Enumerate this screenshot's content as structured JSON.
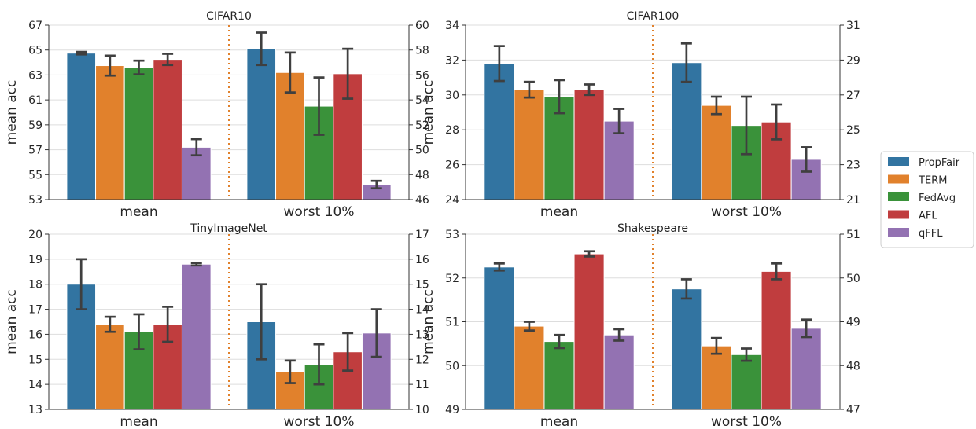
{
  "legend": {
    "placement": "right",
    "entries": [
      {
        "label": "PropFair",
        "color": "#3274a1"
      },
      {
        "label": "TERM",
        "color": "#e1812c"
      },
      {
        "label": "FedAvg",
        "color": "#3a923a"
      },
      {
        "label": "AFL",
        "color": "#c03d3e"
      },
      {
        "label": "qFFL",
        "color": "#9372b2"
      }
    ]
  },
  "colors": {
    "grid": "#dddddd",
    "errorbar": "#3f3f3f",
    "divider": "#e1812c"
  },
  "chart_data": [
    {
      "type": "bar",
      "title": "CIFAR10",
      "ylabel": "mean acc",
      "grid": true,
      "groups": [
        "mean",
        "worst 10%"
      ],
      "series_names": [
        "PropFair",
        "TERM",
        "FedAvg",
        "AFL",
        "qFFL"
      ],
      "left_axis": {
        "ylim": [
          53,
          67
        ],
        "ticks": [
          "53",
          "55",
          "57",
          "59",
          "61",
          "63",
          "65",
          "67"
        ]
      },
      "right_axis": {
        "ylim": [
          46,
          60
        ],
        "ticks": [
          "46",
          "48",
          "50",
          "52",
          "54",
          "56",
          "58",
          "60"
        ]
      },
      "mean": {
        "values": [
          64.75,
          63.75,
          63.6,
          64.25,
          57.2
        ],
        "err": [
          0.1,
          0.8,
          0.55,
          0.45,
          0.65
        ]
      },
      "worst": {
        "values": [
          58.1,
          56.2,
          53.5,
          56.1,
          47.2
        ],
        "err": [
          1.3,
          1.6,
          2.3,
          2.0,
          0.3
        ]
      }
    },
    {
      "type": "bar",
      "title": "CIFAR100",
      "ylabel": "mean acc",
      "grid": true,
      "groups": [
        "mean",
        "worst 10%"
      ],
      "series_names": [
        "PropFair",
        "TERM",
        "FedAvg",
        "AFL",
        "qFFL"
      ],
      "left_axis": {
        "ylim": [
          24,
          34
        ],
        "ticks": [
          "24",
          "26",
          "28",
          "30",
          "32",
          "34"
        ]
      },
      "right_axis": {
        "ylim": [
          21,
          31
        ],
        "ticks": [
          "21",
          "23",
          "25",
          "27",
          "29",
          "31"
        ]
      },
      "mean": {
        "values": [
          31.8,
          30.3,
          29.9,
          30.3,
          28.5
        ],
        "err": [
          1.0,
          0.45,
          0.95,
          0.3,
          0.7
        ]
      },
      "worst": {
        "values": [
          28.85,
          26.4,
          25.25,
          25.45,
          23.3
        ],
        "err": [
          1.1,
          0.5,
          1.65,
          1.0,
          0.7
        ]
      }
    },
    {
      "type": "bar",
      "title": "TinyImageNet",
      "ylabel": "mean acc",
      "grid": true,
      "groups": [
        "mean",
        "worst 10%"
      ],
      "series_names": [
        "PropFair",
        "TERM",
        "FedAvg",
        "AFL",
        "qFFL"
      ],
      "left_axis": {
        "ylim": [
          13,
          20
        ],
        "ticks": [
          "13",
          "14",
          "15",
          "16",
          "17",
          "18",
          "19",
          "20"
        ]
      },
      "right_axis": {
        "ylim": [
          10,
          17
        ],
        "ticks": [
          "10",
          "11",
          "12",
          "13",
          "14",
          "15",
          "16",
          "17"
        ]
      },
      "mean": {
        "values": [
          18.0,
          16.4,
          16.1,
          16.4,
          18.8
        ],
        "err": [
          1.0,
          0.3,
          0.7,
          0.7,
          0.05
        ]
      },
      "worst": {
        "values": [
          13.5,
          11.5,
          11.8,
          12.3,
          13.05
        ],
        "err": [
          1.5,
          0.45,
          0.8,
          0.75,
          0.95
        ]
      }
    },
    {
      "type": "bar",
      "title": "Shakespeare",
      "ylabel": "mean acc",
      "grid": true,
      "groups": [
        "mean",
        "worst 10%"
      ],
      "series_names": [
        "PropFair",
        "TERM",
        "FedAvg",
        "AFL",
        "qFFL"
      ],
      "left_axis": {
        "ylim": [
          49,
          53
        ],
        "ticks": [
          "49",
          "50",
          "51",
          "52",
          "53"
        ]
      },
      "right_axis": {
        "ylim": [
          47,
          51
        ],
        "ticks": [
          "47",
          "48",
          "49",
          "50",
          "51"
        ]
      },
      "mean": {
        "values": [
          52.25,
          50.9,
          50.55,
          52.55,
          50.7
        ],
        "err": [
          0.08,
          0.1,
          0.15,
          0.06,
          0.13
        ]
      },
      "worst": {
        "values": [
          49.75,
          48.45,
          48.25,
          50.15,
          48.85
        ],
        "err": [
          0.22,
          0.18,
          0.14,
          0.18,
          0.2
        ]
      }
    }
  ]
}
